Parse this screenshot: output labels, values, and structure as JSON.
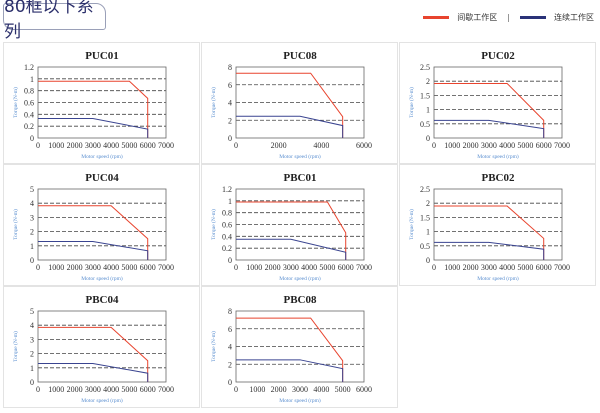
{
  "header": {
    "title": "80框以下系列"
  },
  "legend": [
    {
      "label": "间歇工作区",
      "color": "#e8442e"
    },
    {
      "label": "连续工作区",
      "color": "#2a3278"
    }
  ],
  "legend_separator": "|",
  "chart_data": [
    {
      "type": "line",
      "title": "PUC01",
      "xlabel": "Motor speed (rpm)",
      "ylabel": "Torque (N-m)",
      "xlim": [
        0,
        7000
      ],
      "xticks": [
        0,
        1000,
        2000,
        3000,
        4000,
        5000,
        6000,
        7000
      ],
      "ylim": [
        0,
        1.2
      ],
      "yticks": [
        0,
        0.2,
        0.4,
        0.6,
        0.8,
        1,
        1.2
      ],
      "grid": true,
      "series": [
        {
          "color": "#e8442e",
          "points": [
            [
              0,
              0.96
            ],
            [
              5000,
              0.96
            ],
            [
              6000,
              0.67
            ],
            [
              6000,
              0
            ]
          ]
        },
        {
          "color": "#3a4490",
          "points": [
            [
              0,
              0.33
            ],
            [
              3000,
              0.33
            ],
            [
              6000,
              0.15
            ],
            [
              6000,
              0
            ]
          ]
        }
      ]
    },
    {
      "type": "line",
      "title": "PUC08",
      "xlabel": "Motor speed (rpm)",
      "ylabel": "Torque (N-m)",
      "xlim": [
        0,
        6000
      ],
      "xticks": [
        0,
        2000,
        4000,
        6000
      ],
      "ylim": [
        0,
        8
      ],
      "yticks": [
        0,
        2,
        4,
        6,
        8
      ],
      "grid": true,
      "series": [
        {
          "color": "#e8442e",
          "points": [
            [
              0,
              7.3
            ],
            [
              3500,
              7.3
            ],
            [
              5000,
              2.4
            ],
            [
              5000,
              0
            ]
          ]
        },
        {
          "color": "#3a4490",
          "points": [
            [
              0,
              2.45
            ],
            [
              3000,
              2.45
            ],
            [
              5000,
              1.4
            ],
            [
              5000,
              0
            ]
          ]
        }
      ]
    },
    {
      "type": "line",
      "title": "PUC02",
      "xlabel": "Motor speed (rpm)",
      "ylabel": "Torque (N-m)",
      "xlim": [
        0,
        7000
      ],
      "xticks": [
        0,
        1000,
        2000,
        3000,
        4000,
        5000,
        6000,
        7000
      ],
      "ylim": [
        0,
        2.5
      ],
      "yticks": [
        0,
        0.5,
        1,
        1.5,
        2,
        2.5
      ],
      "grid": true,
      "series": [
        {
          "color": "#e8442e",
          "points": [
            [
              0,
              1.92
            ],
            [
              4000,
              1.92
            ],
            [
              6000,
              0.62
            ],
            [
              6000,
              0
            ]
          ]
        },
        {
          "color": "#3a4490",
          "points": [
            [
              0,
              0.62
            ],
            [
              3000,
              0.62
            ],
            [
              6000,
              0.33
            ],
            [
              6000,
              0
            ]
          ]
        }
      ]
    },
    {
      "type": "line",
      "title": "PUC04",
      "xlabel": "Motor speed (rpm)",
      "ylabel": "Torque (N-m)",
      "xlim": [
        0,
        7000
      ],
      "xticks": [
        0,
        1000,
        2000,
        3000,
        4000,
        5000,
        6000,
        7000
      ],
      "ylim": [
        0,
        5
      ],
      "yticks": [
        0,
        1,
        2,
        3,
        4,
        5
      ],
      "grid": true,
      "series": [
        {
          "color": "#e8442e",
          "points": [
            [
              0,
              3.82
            ],
            [
              4000,
              3.82
            ],
            [
              6000,
              1.5
            ],
            [
              6000,
              0
            ]
          ]
        },
        {
          "color": "#3a4490",
          "points": [
            [
              0,
              1.3
            ],
            [
              3000,
              1.3
            ],
            [
              6000,
              0.65
            ],
            [
              6000,
              0
            ]
          ]
        }
      ]
    },
    {
      "type": "line",
      "title": "PBC01",
      "xlabel": "Motor speed (rpm)",
      "ylabel": "Torque (N-m)",
      "xlim": [
        0,
        7000
      ],
      "xticks": [
        0,
        1000,
        2000,
        3000,
        4000,
        5000,
        6000,
        7000
      ],
      "ylim": [
        0,
        1.2
      ],
      "yticks": [
        0,
        0.2,
        0.4,
        0.6,
        0.8,
        1,
        1.2
      ],
      "grid": true,
      "series": [
        {
          "color": "#e8442e",
          "points": [
            [
              0,
              0.98
            ],
            [
              5000,
              0.98
            ],
            [
              6000,
              0.46
            ],
            [
              6000,
              0
            ]
          ]
        },
        {
          "color": "#3a4490",
          "points": [
            [
              0,
              0.35
            ],
            [
              3000,
              0.35
            ],
            [
              6000,
              0.13
            ],
            [
              6000,
              0
            ]
          ]
        }
      ]
    },
    {
      "type": "line",
      "title": "PBC02",
      "xlabel": "Motor speed (rpm)",
      "ylabel": "Torque (N-m)",
      "xlim": [
        0,
        7000
      ],
      "xticks": [
        0,
        1000,
        2000,
        3000,
        4000,
        5000,
        6000,
        7000
      ],
      "ylim": [
        0,
        2.5
      ],
      "yticks": [
        0,
        0.5,
        1,
        1.5,
        2,
        2.5
      ],
      "grid": true,
      "series": [
        {
          "color": "#e8442e",
          "points": [
            [
              0,
              1.9
            ],
            [
              4000,
              1.9
            ],
            [
              6000,
              0.76
            ],
            [
              6000,
              0
            ]
          ]
        },
        {
          "color": "#3a4490",
          "points": [
            [
              0,
              0.62
            ],
            [
              3000,
              0.62
            ],
            [
              6000,
              0.38
            ],
            [
              6000,
              0
            ]
          ]
        }
      ]
    },
    {
      "type": "line",
      "title": "PBC04",
      "xlabel": "Motor speed (rpm)",
      "ylabel": "Torque (N-m)",
      "xlim": [
        0,
        7000
      ],
      "xticks": [
        0,
        1000,
        2000,
        3000,
        4000,
        5000,
        6000,
        7000
      ],
      "ylim": [
        0,
        5
      ],
      "yticks": [
        0,
        1,
        2,
        3,
        4,
        5
      ],
      "grid": true,
      "series": [
        {
          "color": "#e8442e",
          "points": [
            [
              0,
              3.85
            ],
            [
              4000,
              3.85
            ],
            [
              6000,
              1.5
            ],
            [
              6000,
              0
            ]
          ]
        },
        {
          "color": "#3a4490",
          "points": [
            [
              0,
              1.3
            ],
            [
              3000,
              1.3
            ],
            [
              6000,
              0.62
            ],
            [
              6000,
              0
            ]
          ]
        }
      ]
    },
    {
      "type": "line",
      "title": "PBC08",
      "xlabel": "Motor speed (rpm)",
      "ylabel": "Torque (N-m)",
      "xlim": [
        0,
        6000
      ],
      "xticks": [
        0,
        1000,
        2000,
        3000,
        4000,
        5000,
        6000
      ],
      "ylim": [
        0,
        8
      ],
      "yticks": [
        0,
        2,
        4,
        6,
        8
      ],
      "grid": true,
      "series": [
        {
          "color": "#e8442e",
          "points": [
            [
              0,
              7.2
            ],
            [
              3500,
              7.2
            ],
            [
              5000,
              2.4
            ],
            [
              5000,
              0
            ]
          ]
        },
        {
          "color": "#3a4490",
          "points": [
            [
              0,
              2.5
            ],
            [
              3000,
              2.5
            ],
            [
              5000,
              1.5
            ],
            [
              5000,
              0
            ]
          ]
        }
      ]
    }
  ]
}
